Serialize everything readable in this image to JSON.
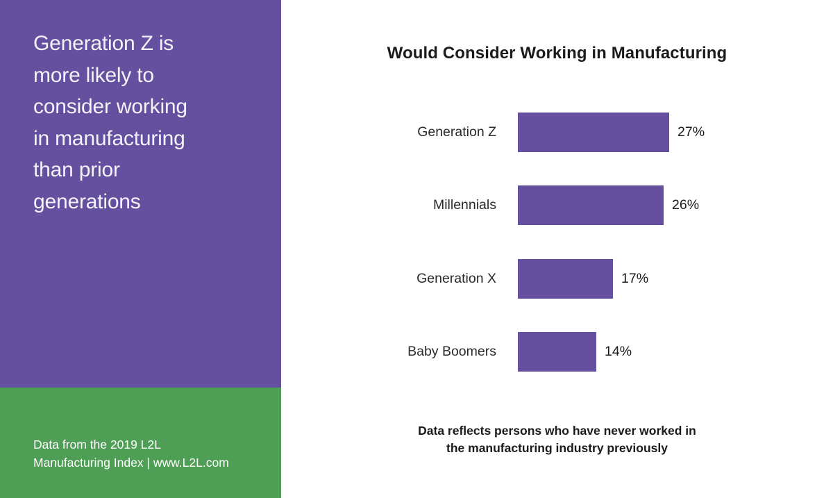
{
  "colors": {
    "sidebar_purple": "#64509f",
    "sidebar_green": "#4f9e55",
    "bar_purple": "#64509f",
    "headline_text": "#f4f2f9",
    "body_text": "#1b1b1b"
  },
  "sidebar": {
    "headline": "Generation Z is\nmore likely to\nconsider working\nin manufacturing\nthan prior\ngenerations",
    "source": "Data from the 2019 L2L\nManufacturing Index | www.L2L.com"
  },
  "main": {
    "note": "Data reflects persons who have never worked in\nthe manufacturing industry previously"
  },
  "chart_data": {
    "type": "bar",
    "orientation": "horizontal",
    "title": "Would Consider Working in Manufacturing",
    "categories": [
      "Generation Z",
      "Millennials",
      "Generation X",
      "Baby Boomers"
    ],
    "values": [
      27,
      26,
      17,
      14
    ],
    "value_labels": [
      "27%",
      "26%",
      "17%",
      "14%"
    ],
    "unit": "%",
    "bar_color": "#64509f",
    "xlim": [
      0,
      27
    ],
    "grid": false,
    "legend": false,
    "data_labels_position": "right-of-bar"
  }
}
